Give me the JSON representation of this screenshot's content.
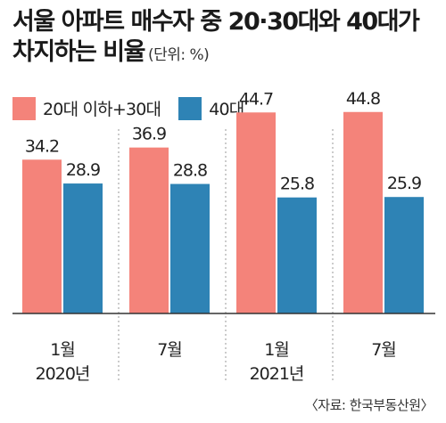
{
  "chart_data": {
    "type": "bar",
    "title_line1": "서울 아파트 매수자 중 20·30대와 40대가",
    "title_line2": "차지하는 비율",
    "unit": "(단위: %)",
    "categories": [
      "1월",
      "7월",
      "1월",
      "7월"
    ],
    "years": [
      {
        "label": "2020년"
      },
      {
        "label": "2021년"
      }
    ],
    "series": [
      {
        "name": "20대 이하+30대",
        "color": "#f4837a",
        "values": [
          34.2,
          36.9,
          44.7,
          44.8
        ]
      },
      {
        "name": "40대",
        "color": "#2e83b5",
        "values": [
          28.9,
          28.8,
          25.8,
          25.9
        ]
      }
    ],
    "grid": false,
    "legend_position": "top-left",
    "source": "〈자료: 한국부동산원〉"
  }
}
